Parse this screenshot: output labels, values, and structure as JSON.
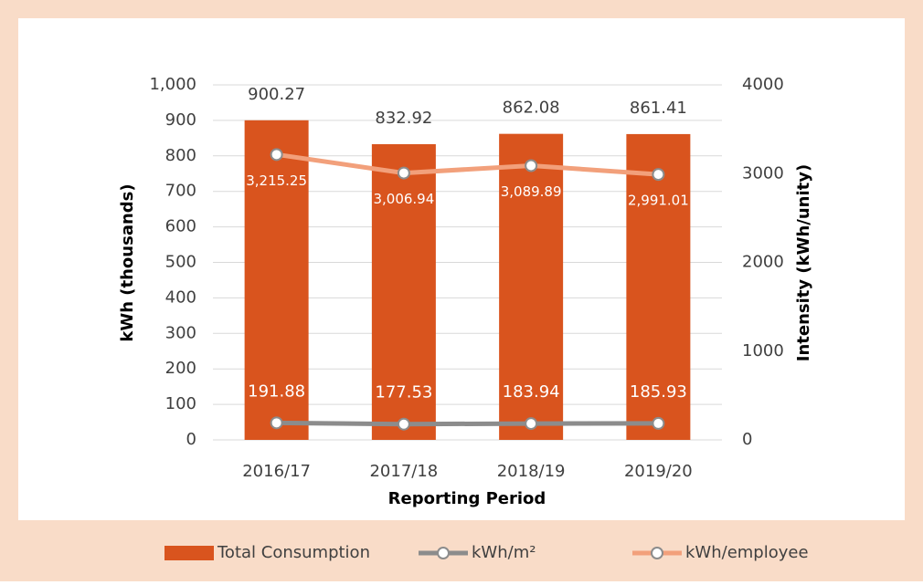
{
  "chart_data": {
    "type": "bar",
    "categories": [
      "2016/17",
      "2017/18",
      "2018/19",
      "2019/20"
    ],
    "series": [
      {
        "name": "Total Consumption",
        "type": "bar",
        "axis": "y",
        "color": "#d9541e",
        "values": [
          900.27,
          832.92,
          862.08,
          861.41
        ]
      },
      {
        "name": "kWh/m²",
        "type": "line",
        "axis": "y2",
        "color": "#8c8c8c",
        "values": [
          191.88,
          177.53,
          183.94,
          185.93
        ]
      },
      {
        "name": "kWh/employee",
        "type": "line",
        "axis": "y2",
        "color": "#f2a07b",
        "values": [
          3215.25,
          3006.94,
          3089.89,
          2991.01
        ],
        "value_labels": [
          "3,215.25",
          "3,006.94",
          "3,089.89",
          "2,991.01"
        ]
      }
    ],
    "ylabel": "kWh (thousands)",
    "y2label": "Intensity (kWh/unity)",
    "xlabel": "Reporting Period",
    "ylim": [
      0,
      1000
    ],
    "yticks": [
      0,
      100,
      200,
      300,
      400,
      500,
      600,
      700,
      800,
      900,
      {
        "value": 1000,
        "label": "1,000"
      }
    ],
    "y2lim": [
      0,
      4000
    ],
    "y2ticks": [
      0,
      1000,
      2000,
      3000,
      4000
    ],
    "grid": true,
    "legend": "bottom"
  }
}
